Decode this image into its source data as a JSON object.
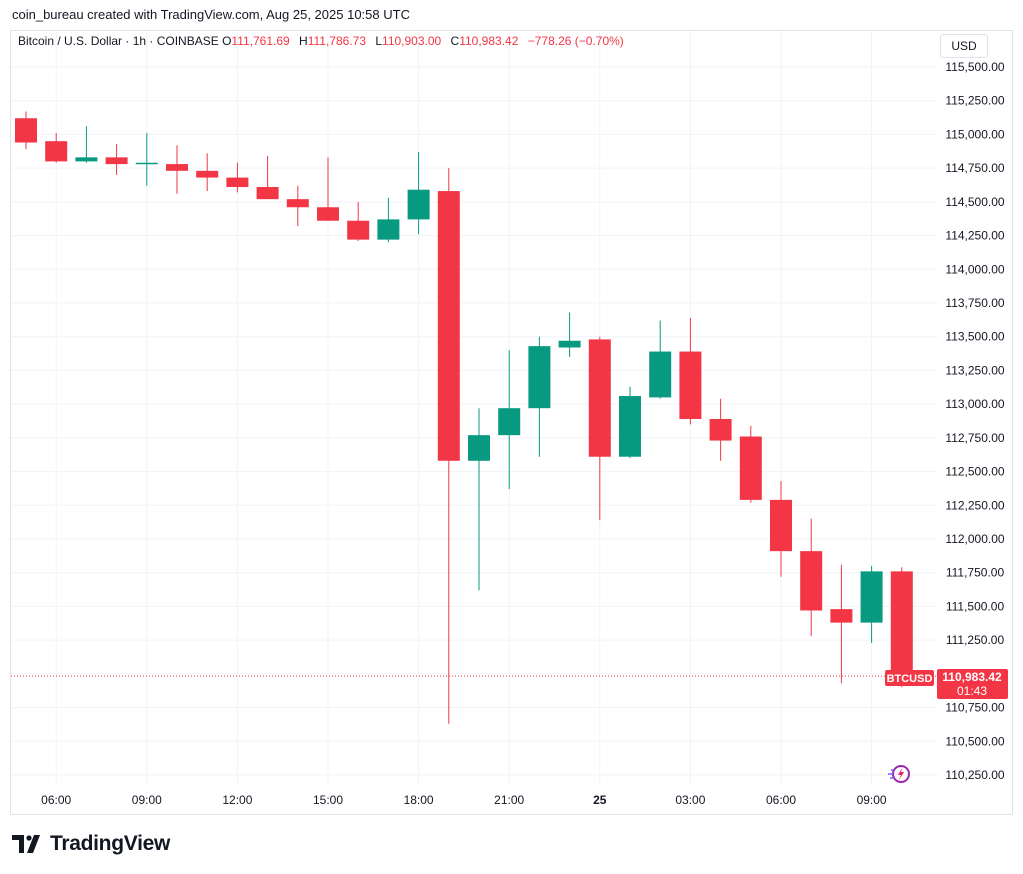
{
  "header": {
    "credit": "coin_bureau created with TradingView.com, Aug 25, 2025 10:58 UTC"
  },
  "legend": {
    "symbol": "Bitcoin / U.S. Dollar · 1h · COINBASE",
    "o_label": "O",
    "o_value": "111,761.69",
    "h_label": "H",
    "h_value": "111,786.73",
    "l_label": "L",
    "l_value": "110,903.00",
    "c_label": "C",
    "c_value": "110,983.42",
    "change": "−778.26 (−0.70%)"
  },
  "currency": "USD",
  "price_tag": {
    "ticker": "BTCUSD",
    "price": "110,983.42",
    "countdown": "01:43"
  },
  "brand": {
    "name": "TradingView"
  },
  "icons": {
    "brand": "tradingview-logo-icon",
    "timeline": "magic-timeline-icon"
  },
  "colors": {
    "up": "#089981",
    "down": "#f23645",
    "grid": "#f0f3fa",
    "text": "#131722"
  },
  "chart_data": {
    "type": "candlestick",
    "symbol": "Bitcoin / U.S. Dollar",
    "interval": "1h",
    "exchange": "COINBASE",
    "ylim": [
      110130,
      115670
    ],
    "y_ticks": [
      110250,
      110500,
      110750,
      111000,
      111250,
      111500,
      111750,
      112000,
      112250,
      112500,
      112750,
      113000,
      113250,
      113500,
      113750,
      114000,
      114250,
      114500,
      114750,
      115000,
      115250,
      115500
    ],
    "x_tick_labels": [
      {
        "i": 1,
        "label": "06:00"
      },
      {
        "i": 4,
        "label": "09:00"
      },
      {
        "i": 7,
        "label": "12:00"
      },
      {
        "i": 10,
        "label": "15:00"
      },
      {
        "i": 13,
        "label": "18:00"
      },
      {
        "i": 16,
        "label": "21:00"
      },
      {
        "i": 19,
        "label": "25"
      },
      {
        "i": 22,
        "label": "03:00"
      },
      {
        "i": 25,
        "label": "06:00"
      },
      {
        "i": 28,
        "label": "09:00"
      }
    ],
    "candles": [
      {
        "o": 115120,
        "h": 115170,
        "l": 114890,
        "c": 114940
      },
      {
        "o": 114950,
        "h": 115010,
        "l": 114790,
        "c": 114800
      },
      {
        "o": 114800,
        "h": 115060,
        "l": 114790,
        "c": 114830
      },
      {
        "o": 114830,
        "h": 114930,
        "l": 114700,
        "c": 114780
      },
      {
        "o": 114790,
        "h": 115010,
        "l": 114620,
        "c": 114790
      },
      {
        "o": 114780,
        "h": 114920,
        "l": 114560,
        "c": 114730
      },
      {
        "o": 114730,
        "h": 114860,
        "l": 114580,
        "c": 114680
      },
      {
        "o": 114680,
        "h": 114790,
        "l": 114570,
        "c": 114610
      },
      {
        "o": 114610,
        "h": 114840,
        "l": 114520,
        "c": 114520
      },
      {
        "o": 114520,
        "h": 114620,
        "l": 114320,
        "c": 114460
      },
      {
        "o": 114460,
        "h": 114830,
        "l": 114360,
        "c": 114360
      },
      {
        "o": 114360,
        "h": 114500,
        "l": 114210,
        "c": 114220
      },
      {
        "o": 114220,
        "h": 114530,
        "l": 114200,
        "c": 114370
      },
      {
        "o": 114370,
        "h": 114870,
        "l": 114260,
        "c": 114590
      },
      {
        "o": 114580,
        "h": 114750,
        "l": 110630,
        "c": 112580
      },
      {
        "o": 112580,
        "h": 112970,
        "l": 111620,
        "c": 112770
      },
      {
        "o": 112770,
        "h": 113400,
        "l": 112370,
        "c": 112970
      },
      {
        "o": 112970,
        "h": 113500,
        "l": 112610,
        "c": 113430
      },
      {
        "o": 113420,
        "h": 113680,
        "l": 113350,
        "c": 113470
      },
      {
        "o": 113480,
        "h": 113500,
        "l": 112140,
        "c": 112610
      },
      {
        "o": 112610,
        "h": 113130,
        "l": 112600,
        "c": 113060
      },
      {
        "o": 113050,
        "h": 113620,
        "l": 113040,
        "c": 113390
      },
      {
        "o": 113390,
        "h": 113640,
        "l": 112850,
        "c": 112890
      },
      {
        "o": 112890,
        "h": 113040,
        "l": 112580,
        "c": 112730
      },
      {
        "o": 112760,
        "h": 112840,
        "l": 112270,
        "c": 112290
      },
      {
        "o": 112290,
        "h": 112430,
        "l": 111720,
        "c": 111910
      },
      {
        "o": 111910,
        "h": 112150,
        "l": 111280,
        "c": 111470
      },
      {
        "o": 111480,
        "h": 111810,
        "l": 110930,
        "c": 111380
      },
      {
        "o": 111380,
        "h": 111800,
        "l": 111230,
        "c": 111760
      },
      {
        "o": 111760,
        "h": 111790,
        "l": 110900,
        "c": 110980
      }
    ],
    "last_price": 110983.42
  }
}
